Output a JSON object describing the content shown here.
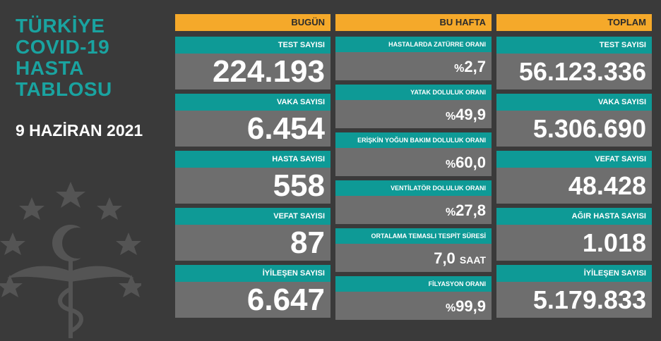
{
  "header": {
    "title_lines": [
      "TÜRKİYE",
      "COVID-19",
      "HASTA",
      "TABLOSU"
    ],
    "date": "9 HAZİRAN 2021"
  },
  "today": {
    "heading": "BUGÜN",
    "items": [
      {
        "label": "TEST SAYISI",
        "value": "224.193"
      },
      {
        "label": "VAKA SAYISI",
        "value": "6.454"
      },
      {
        "label": "HASTA SAYISI",
        "value": "558"
      },
      {
        "label": "VEFAT SAYISI",
        "value": "87"
      },
      {
        "label": "İYİLEŞEN SAYISI",
        "value": "6.647"
      }
    ]
  },
  "week": {
    "heading": "BU HAFTA",
    "items": [
      {
        "label": "HASTALARDA ZATÜRRE ORANI",
        "prefix": "%",
        "value": "2,7",
        "unit": ""
      },
      {
        "label": "YATAK DOLULUK ORANI",
        "prefix": "%",
        "value": "49,9",
        "unit": ""
      },
      {
        "label": "ERİŞKİN YOĞUN BAKIM DOLULUK ORANI",
        "prefix": "%",
        "value": "60,0",
        "unit": ""
      },
      {
        "label": "VENTİLATÖR DOLULUK ORANI",
        "prefix": "%",
        "value": "27,8",
        "unit": ""
      },
      {
        "label": "ORTALAMA TEMASLI TESPİT SÜRESİ",
        "prefix": "",
        "value": "7,0",
        "unit": "SAAT"
      },
      {
        "label": "FİLYASYON ORANI",
        "prefix": "%",
        "value": "99,9",
        "unit": ""
      }
    ]
  },
  "total": {
    "heading": "TOPLAM",
    "items": [
      {
        "label": "TEST SAYISI",
        "value": "56.123.336"
      },
      {
        "label": "VAKA SAYISI",
        "value": "5.306.690"
      },
      {
        "label": "VEFAT SAYISI",
        "value": "48.428"
      },
      {
        "label": "AĞIR HASTA SAYISI",
        "value": "1.018"
      },
      {
        "label": "İYİLEŞEN SAYISI",
        "value": "5.179.833"
      }
    ]
  },
  "colors": {
    "background": "#3a3a3a",
    "heading": "#f5a92a",
    "label": "#0e9a96",
    "value_box": "#6e6e6e",
    "title": "#1aa3a0"
  },
  "icons": {
    "emblem": "ministry-of-health-emblem-icon"
  }
}
